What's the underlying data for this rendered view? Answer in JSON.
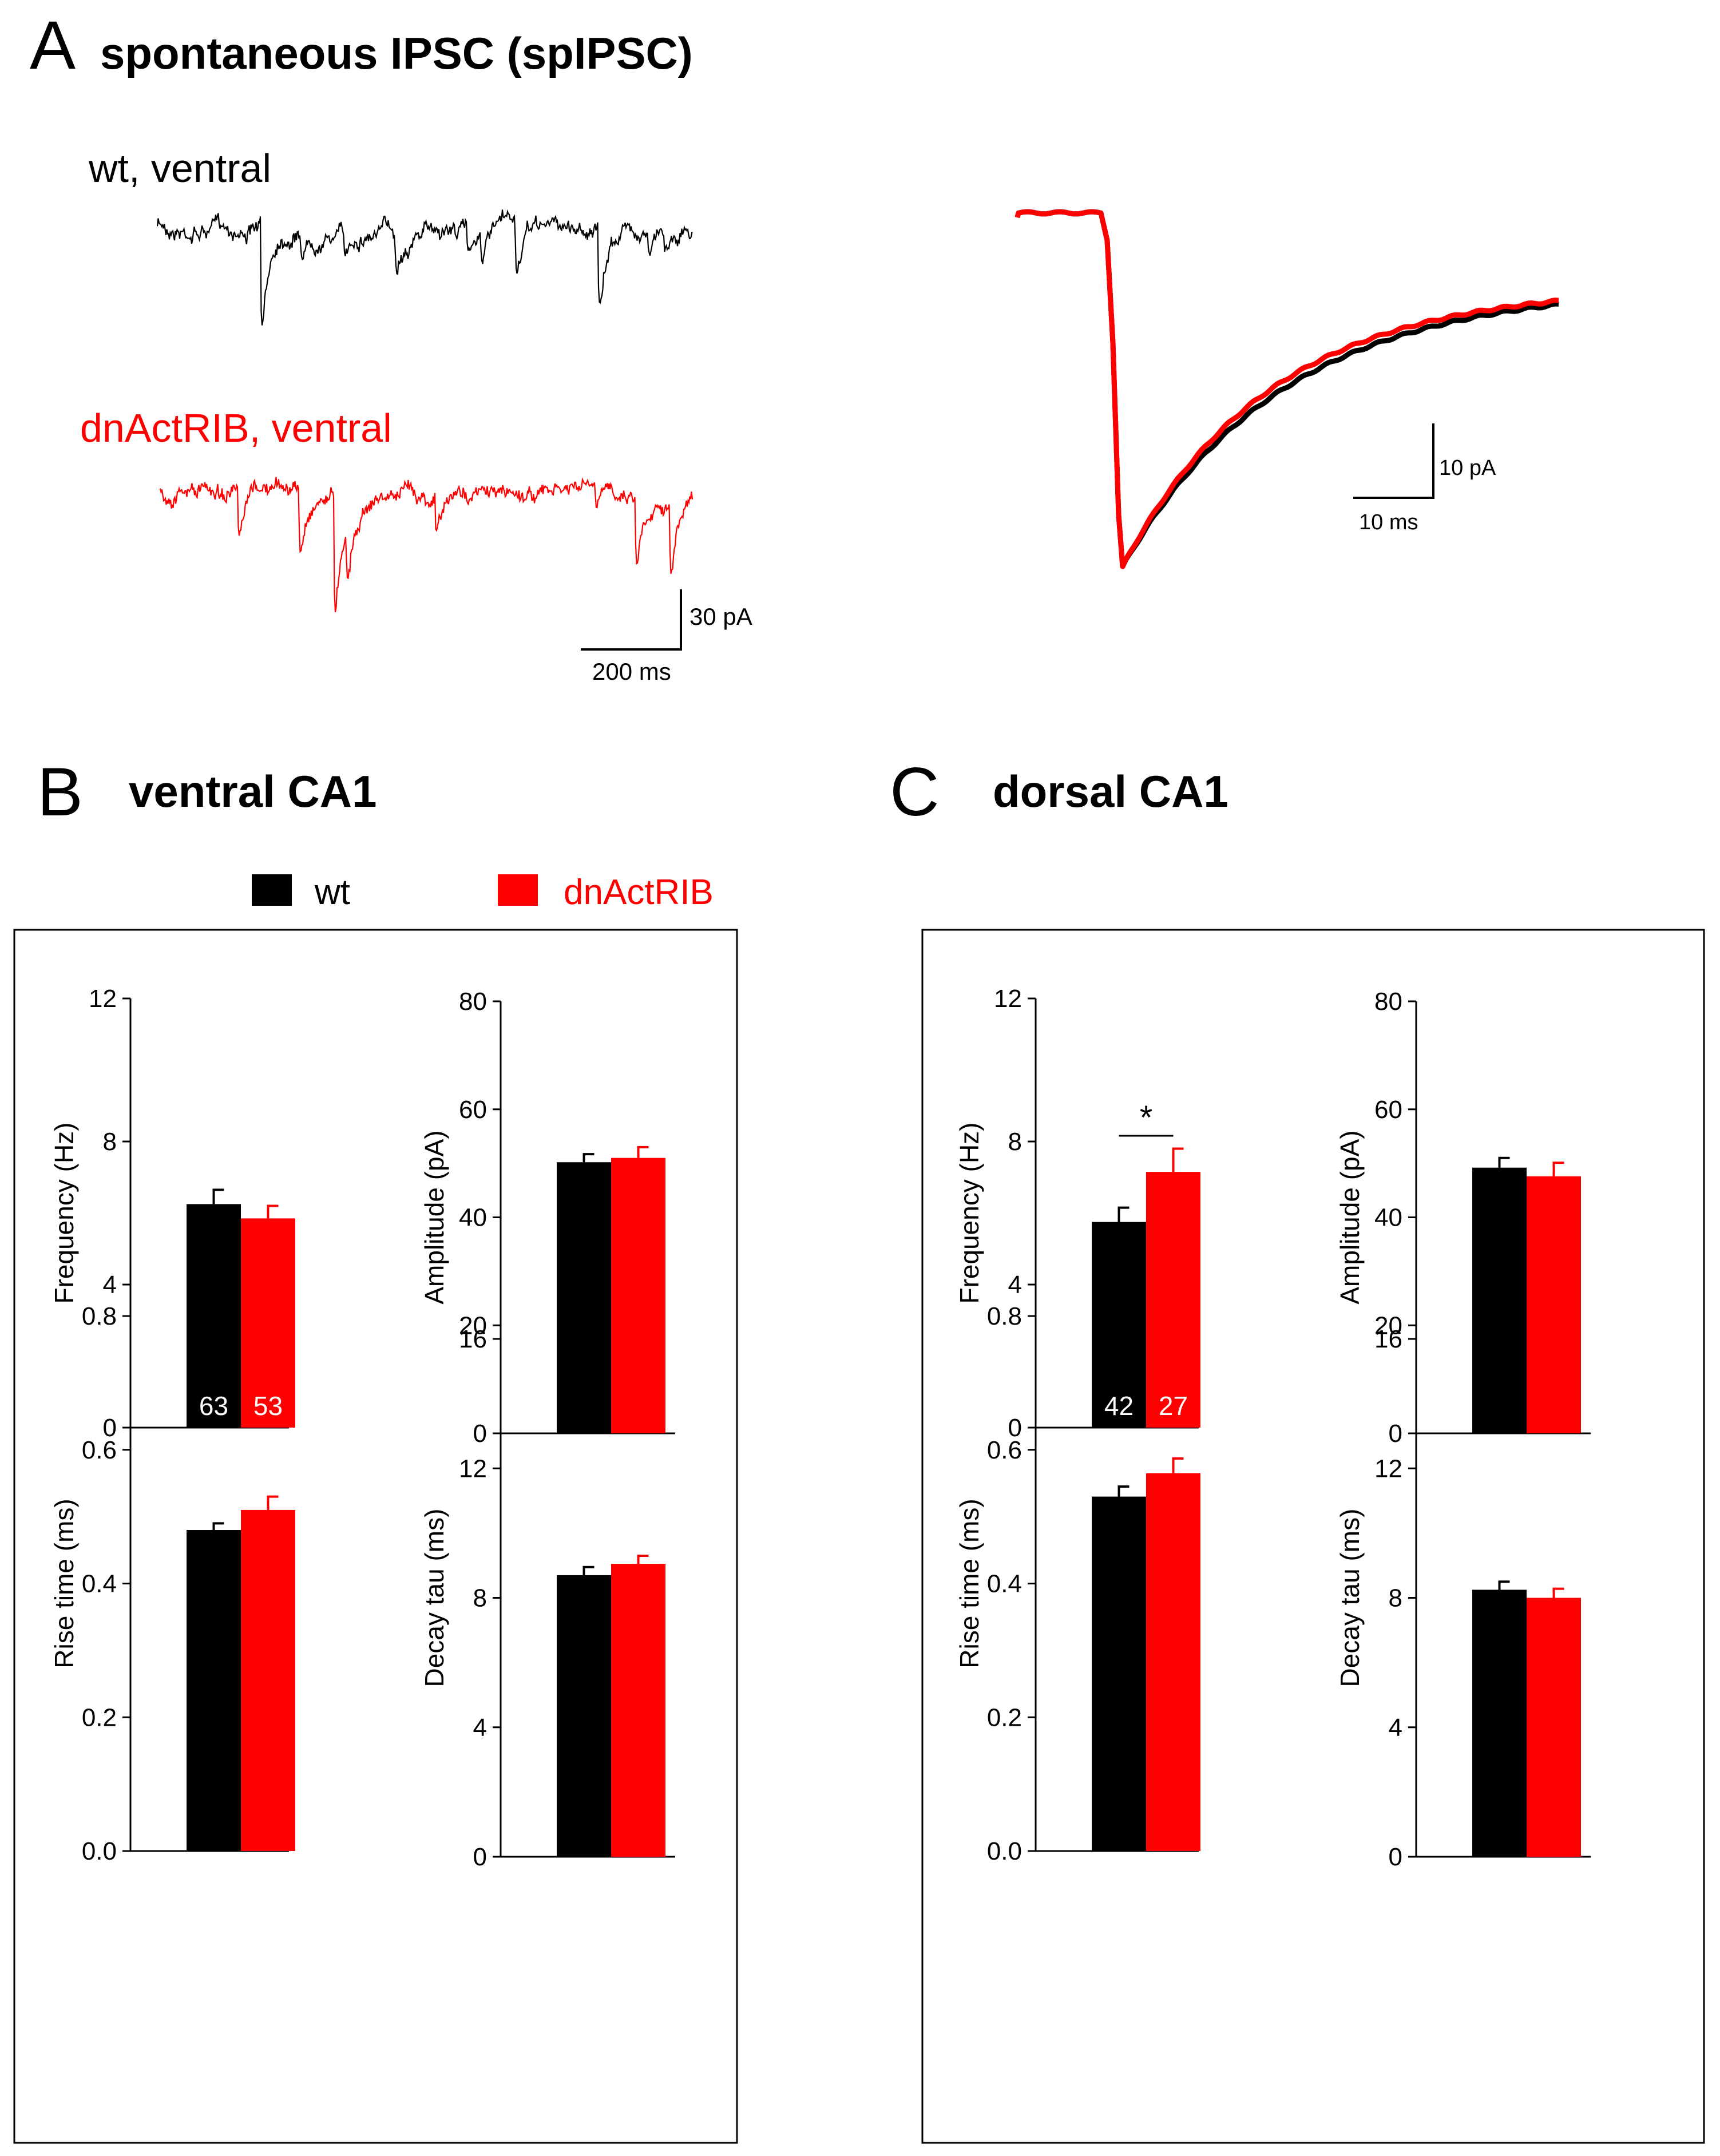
{
  "panel_a": {
    "letter": "A",
    "title": "spontaneous IPSC (spIPSC)",
    "trace_wt_label": "wt, ventral",
    "trace_dn_label": "dnActRIB, ventral",
    "scalebar_left_y": "30 pA",
    "scalebar_left_x": "200 ms",
    "scalebar_right_y": "10 pA",
    "scalebar_right_x": "10 ms"
  },
  "panel_b": {
    "letter": "B",
    "title": "ventral CA1"
  },
  "panel_c": {
    "letter": "C",
    "title": "dorsal CA1"
  },
  "legend": {
    "wt": "wt",
    "dn": "dnActRIB"
  },
  "colors": {
    "wt": "#000000",
    "dn": "#ff0000"
  },
  "chart_data": [
    {
      "type": "bar",
      "panel": "B",
      "title": "ventral CA1",
      "ylabel": "Frequency (Hz)",
      "ylim": [
        0,
        12
      ],
      "yticks": [
        "0",
        "4",
        "8",
        "12"
      ],
      "categories": [
        "wt",
        "dnActRIB"
      ],
      "values": [
        6.25,
        5.85
      ],
      "errors": [
        0.4,
        0.35
      ],
      "n_labels": [
        "63",
        "53"
      ],
      "significance": ""
    },
    {
      "type": "bar",
      "panel": "B",
      "title": "ventral CA1",
      "ylabel": "Amplitude (pA)",
      "ylim": [
        0,
        80
      ],
      "yticks": [
        "0",
        "20",
        "40",
        "60",
        "80"
      ],
      "categories": [
        "wt",
        "dnActRIB"
      ],
      "values": [
        50.2,
        51.0
      ],
      "errors": [
        1.5,
        2.0
      ],
      "n_labels": [],
      "significance": ""
    },
    {
      "type": "bar",
      "panel": "B",
      "title": "ventral CA1",
      "ylabel": "Rise time (ms)",
      "ylim": [
        0,
        0.8
      ],
      "yticks": [
        "0.0",
        "0.2",
        "0.4",
        "0.6",
        "0.8"
      ],
      "categories": [
        "wt",
        "dnActRIB"
      ],
      "values": [
        0.48,
        0.51
      ],
      "errors": [
        0.01,
        0.02
      ],
      "n_labels": [],
      "significance": ""
    },
    {
      "type": "bar",
      "panel": "B",
      "title": "ventral CA1",
      "ylabel": "Decay tau (ms)",
      "ylim": [
        0,
        16
      ],
      "yticks": [
        "0",
        "4",
        "8",
        "12",
        "16"
      ],
      "categories": [
        "wt",
        "dnActRIB"
      ],
      "values": [
        8.7,
        9.05
      ],
      "errors": [
        0.25,
        0.25
      ],
      "n_labels": [],
      "significance": ""
    },
    {
      "type": "bar",
      "panel": "C",
      "title": "dorsal CA1",
      "ylabel": "Frequency (Hz)",
      "ylim": [
        0,
        12
      ],
      "yticks": [
        "0",
        "4",
        "8",
        "12"
      ],
      "categories": [
        "wt",
        "dnActRIB"
      ],
      "values": [
        5.75,
        7.15
      ],
      "errors": [
        0.4,
        0.65
      ],
      "n_labels": [
        "42",
        "27"
      ],
      "significance": "*"
    },
    {
      "type": "bar",
      "panel": "C",
      "title": "dorsal CA1",
      "ylabel": "Amplitude (pA)",
      "ylim": [
        0,
        80
      ],
      "yticks": [
        "0",
        "20",
        "40",
        "60",
        "80"
      ],
      "categories": [
        "wt",
        "dnActRIB"
      ],
      "values": [
        49.2,
        47.6
      ],
      "errors": [
        1.8,
        2.5
      ],
      "n_labels": [],
      "significance": ""
    },
    {
      "type": "bar",
      "panel": "C",
      "title": "dorsal CA1",
      "ylabel": "Rise time (ms)",
      "ylim": [
        0,
        0.8
      ],
      "yticks": [
        "0.0",
        "0.2",
        "0.4",
        "0.6",
        "0.8"
      ],
      "categories": [
        "wt",
        "dnActRIB"
      ],
      "values": [
        0.53,
        0.565
      ],
      "errors": [
        0.015,
        0.022
      ],
      "n_labels": [],
      "significance": ""
    },
    {
      "type": "bar",
      "panel": "C",
      "title": "dorsal CA1",
      "ylabel": "Decay tau (ms)",
      "ylim": [
        0,
        16
      ],
      "yticks": [
        "0",
        "4",
        "8",
        "12",
        "16"
      ],
      "categories": [
        "wt",
        "dnActRIB"
      ],
      "values": [
        8.25,
        8.0
      ],
      "errors": [
        0.25,
        0.28
      ],
      "n_labels": [],
      "significance": ""
    }
  ]
}
